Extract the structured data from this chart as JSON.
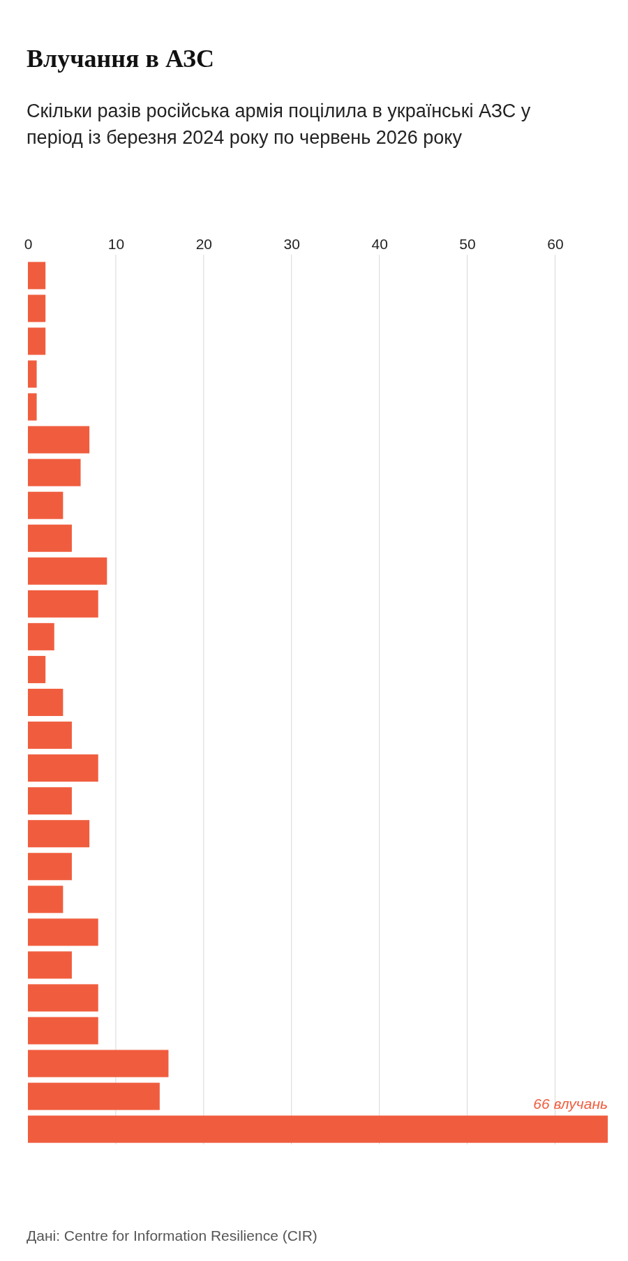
{
  "chart_data": {
    "type": "bar",
    "orientation": "horizontal",
    "title": "Влучання в АЗС",
    "subtitle": "Скільки разів російська армія поцілила в українські АЗС у період із березня 2024 року по червень 2026 року",
    "categories": [
      null,
      null,
      null,
      null,
      null,
      null,
      null,
      null,
      null,
      null,
      null,
      null,
      null,
      null,
      null,
      null,
      null,
      null,
      null,
      null,
      null,
      null,
      null,
      null,
      null,
      null,
      null
    ],
    "values": [
      2,
      2,
      2,
      1,
      1,
      7,
      6,
      4,
      5,
      9,
      8,
      3,
      2,
      4,
      5,
      8,
      5,
      7,
      5,
      4,
      8,
      5,
      8,
      8,
      16,
      15,
      66
    ],
    "value_labels": [
      null,
      null,
      null,
      null,
      null,
      null,
      null,
      null,
      null,
      null,
      null,
      null,
      null,
      null,
      null,
      null,
      null,
      null,
      null,
      null,
      null,
      null,
      null,
      null,
      null,
      null,
      "66 влучань"
    ],
    "color": "#f05d3e",
    "xlim": [
      0,
      66
    ],
    "xticks": [
      0,
      10,
      20,
      30,
      40,
      50,
      60
    ],
    "grid": "x",
    "annotations": [
      "Дані: Centre for Information Resilience (CIR)"
    ]
  }
}
